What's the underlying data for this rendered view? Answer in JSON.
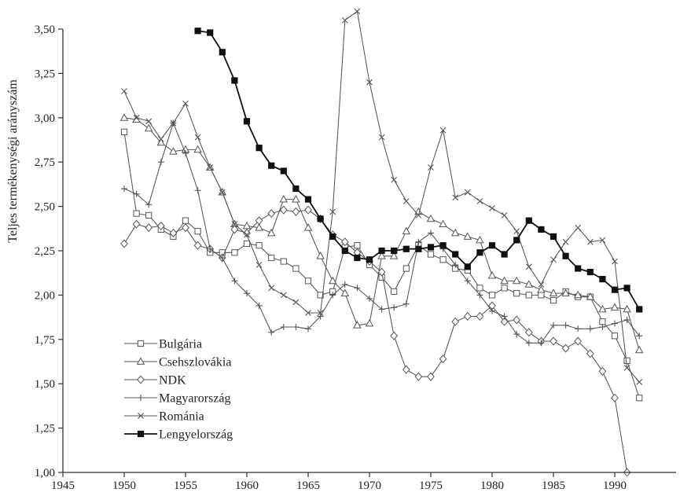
{
  "chart_data": {
    "type": "line",
    "title": "",
    "xlabel": "",
    "ylabel": "Teljes termékenységi arányszám",
    "xlim": [
      1945,
      1995
    ],
    "ylim": [
      1.0,
      3.5
    ],
    "xticks": [
      1945,
      1950,
      1955,
      1960,
      1965,
      1970,
      1975,
      1980,
      1985,
      1990
    ],
    "xtick_labels": [
      "1945",
      "1950",
      "1955",
      "1960",
      "1965",
      "1970",
      "1975",
      "1980",
      "1985",
      "1990"
    ],
    "yticks": [
      1.0,
      1.25,
      1.5,
      1.75,
      2.0,
      2.25,
      2.5,
      2.75,
      3.0,
      3.25,
      3.5
    ],
    "ytick_labels": [
      "1,00",
      "1,25",
      "1,50",
      "1,75",
      "2,00",
      "2,25",
      "2,50",
      "2,75",
      "3,00",
      "3,25",
      "3,50"
    ],
    "grid": false,
    "legend_position": "bottom-left",
    "series": [
      {
        "name": "Bulgária",
        "marker": "square-open",
        "color": "#555555",
        "points": [
          [
            1950,
            2.92
          ],
          [
            1951,
            2.46
          ],
          [
            1952,
            2.45
          ],
          [
            1953,
            2.37
          ],
          [
            1954,
            2.33
          ],
          [
            1955,
            2.42
          ],
          [
            1956,
            2.36
          ],
          [
            1957,
            2.24
          ],
          [
            1958,
            2.24
          ],
          [
            1959,
            2.24
          ],
          [
            1960,
            2.29
          ],
          [
            1961,
            2.28
          ],
          [
            1962,
            2.21
          ],
          [
            1963,
            2.19
          ],
          [
            1964,
            2.15
          ],
          [
            1965,
            2.08
          ],
          [
            1966,
            2.0
          ],
          [
            1967,
            2.02
          ],
          [
            1968,
            2.27
          ],
          [
            1969,
            2.28
          ],
          [
            1970,
            2.17
          ],
          [
            1971,
            2.1
          ],
          [
            1972,
            2.02
          ],
          [
            1973,
            2.15
          ],
          [
            1974,
            2.28
          ],
          [
            1975,
            2.23
          ],
          [
            1976,
            2.2
          ],
          [
            1977,
            2.15
          ],
          [
            1978,
            2.14
          ],
          [
            1979,
            2.04
          ],
          [
            1980,
            2.0
          ],
          [
            1981,
            2.04
          ],
          [
            1982,
            2.01
          ],
          [
            1983,
            2.0
          ],
          [
            1984,
            2.0
          ],
          [
            1985,
            1.97
          ],
          [
            1986,
            2.02
          ],
          [
            1987,
            1.99
          ],
          [
            1988,
            1.99
          ],
          [
            1989,
            1.85
          ],
          [
            1990,
            1.77
          ],
          [
            1991,
            1.63
          ],
          [
            1992,
            1.42
          ]
        ]
      },
      {
        "name": "Csehszlovákia",
        "marker": "triangle-open",
        "color": "#555555",
        "points": [
          [
            1950,
            3.0
          ],
          [
            1951,
            2.99
          ],
          [
            1952,
            2.94
          ],
          [
            1953,
            2.86
          ],
          [
            1954,
            2.81
          ],
          [
            1955,
            2.82
          ],
          [
            1956,
            2.82
          ],
          [
            1957,
            2.72
          ],
          [
            1958,
            2.58
          ],
          [
            1959,
            2.4
          ],
          [
            1960,
            2.39
          ],
          [
            1961,
            2.38
          ],
          [
            1962,
            2.35
          ],
          [
            1963,
            2.54
          ],
          [
            1964,
            2.54
          ],
          [
            1965,
            2.38
          ],
          [
            1966,
            2.22
          ],
          [
            1967,
            2.08
          ],
          [
            1968,
            2.01
          ],
          [
            1969,
            1.83
          ],
          [
            1970,
            1.84
          ],
          [
            1971,
            2.22
          ],
          [
            1972,
            2.22
          ],
          [
            1973,
            2.36
          ],
          [
            1974,
            2.47
          ],
          [
            1975,
            2.43
          ],
          [
            1976,
            2.4
          ],
          [
            1977,
            2.35
          ],
          [
            1978,
            2.33
          ],
          [
            1979,
            2.31
          ],
          [
            1980,
            2.11
          ],
          [
            1981,
            2.08
          ],
          [
            1982,
            2.08
          ],
          [
            1983,
            2.06
          ],
          [
            1984,
            2.03
          ],
          [
            1985,
            2.01
          ],
          [
            1986,
            2.01
          ],
          [
            1987,
            2.0
          ],
          [
            1988,
            1.99
          ],
          [
            1989,
            1.92
          ],
          [
            1990,
            1.93
          ],
          [
            1991,
            1.92
          ],
          [
            1992,
            1.69
          ]
        ]
      },
      {
        "name": "NDK",
        "marker": "diamond-open",
        "color": "#555555",
        "points": [
          [
            1950,
            2.29
          ],
          [
            1951,
            2.4
          ],
          [
            1952,
            2.38
          ],
          [
            1953,
            2.39
          ],
          [
            1954,
            2.35
          ],
          [
            1955,
            2.38
          ],
          [
            1956,
            2.28
          ],
          [
            1957,
            2.26
          ],
          [
            1958,
            2.21
          ],
          [
            1959,
            2.37
          ],
          [
            1960,
            2.35
          ],
          [
            1961,
            2.42
          ],
          [
            1962,
            2.46
          ],
          [
            1963,
            2.48
          ],
          [
            1964,
            2.47
          ],
          [
            1965,
            2.48
          ],
          [
            1966,
            2.43
          ],
          [
            1967,
            2.34
          ],
          [
            1968,
            2.3
          ],
          [
            1969,
            2.24
          ],
          [
            1970,
            2.19
          ],
          [
            1971,
            2.13
          ],
          [
            1972,
            1.77
          ],
          [
            1973,
            1.58
          ],
          [
            1974,
            1.54
          ],
          [
            1975,
            1.54
          ],
          [
            1976,
            1.64
          ],
          [
            1977,
            1.85
          ],
          [
            1978,
            1.88
          ],
          [
            1979,
            1.88
          ],
          [
            1980,
            1.94
          ],
          [
            1981,
            1.85
          ],
          [
            1982,
            1.86
          ],
          [
            1983,
            1.79
          ],
          [
            1984,
            1.74
          ],
          [
            1985,
            1.74
          ],
          [
            1986,
            1.7
          ],
          [
            1987,
            1.74
          ],
          [
            1988,
            1.67
          ],
          [
            1989,
            1.57
          ],
          [
            1990,
            1.42
          ],
          [
            1991,
            1.0
          ]
        ]
      },
      {
        "name": "Magyarország",
        "marker": "plus",
        "color": "#555555",
        "points": [
          [
            1950,
            2.6
          ],
          [
            1951,
            2.57
          ],
          [
            1952,
            2.51
          ],
          [
            1953,
            2.75
          ],
          [
            1954,
            2.97
          ],
          [
            1955,
            2.8
          ],
          [
            1956,
            2.59
          ],
          [
            1957,
            2.26
          ],
          [
            1958,
            2.21
          ],
          [
            1959,
            2.08
          ],
          [
            1960,
            2.01
          ],
          [
            1961,
            1.94
          ],
          [
            1962,
            1.79
          ],
          [
            1963,
            1.82
          ],
          [
            1964,
            1.82
          ],
          [
            1965,
            1.81
          ],
          [
            1966,
            1.88
          ],
          [
            1967,
            2.0
          ],
          [
            1968,
            2.06
          ],
          [
            1969,
            2.04
          ],
          [
            1970,
            1.98
          ],
          [
            1971,
            1.92
          ],
          [
            1972,
            1.93
          ],
          [
            1973,
            1.95
          ],
          [
            1974,
            2.3
          ],
          [
            1975,
            2.35
          ],
          [
            1976,
            2.26
          ],
          [
            1977,
            2.17
          ],
          [
            1978,
            2.08
          ],
          [
            1979,
            2.0
          ],
          [
            1980,
            1.91
          ],
          [
            1981,
            1.88
          ],
          [
            1982,
            1.78
          ],
          [
            1983,
            1.73
          ],
          [
            1984,
            1.73
          ],
          [
            1985,
            1.83
          ],
          [
            1986,
            1.83
          ],
          [
            1987,
            1.81
          ],
          [
            1988,
            1.81
          ],
          [
            1989,
            1.82
          ],
          [
            1990,
            1.84
          ],
          [
            1991,
            1.86
          ],
          [
            1992,
            1.77
          ]
        ]
      },
      {
        "name": "Románia",
        "marker": "x",
        "color": "#555555",
        "points": [
          [
            1950,
            3.15
          ],
          [
            1951,
            3.0
          ],
          [
            1952,
            2.98
          ],
          [
            1953,
            2.88
          ],
          [
            1954,
            2.97
          ],
          [
            1955,
            3.08
          ],
          [
            1956,
            2.89
          ],
          [
            1957,
            2.72
          ],
          [
            1958,
            2.58
          ],
          [
            1959,
            2.4
          ],
          [
            1960,
            2.34
          ],
          [
            1961,
            2.17
          ],
          [
            1962,
            2.04
          ],
          [
            1963,
            2.0
          ],
          [
            1964,
            1.96
          ],
          [
            1965,
            1.9
          ],
          [
            1966,
            1.9
          ],
          [
            1967,
            2.47
          ],
          [
            1968,
            3.55
          ],
          [
            1969,
            3.6
          ],
          [
            1970,
            3.2
          ],
          [
            1971,
            2.89
          ],
          [
            1972,
            2.65
          ],
          [
            1973,
            2.53
          ],
          [
            1974,
            2.45
          ],
          [
            1975,
            2.72
          ],
          [
            1976,
            2.93
          ],
          [
            1977,
            2.55
          ],
          [
            1978,
            2.58
          ],
          [
            1979,
            2.53
          ],
          [
            1980,
            2.49
          ],
          [
            1981,
            2.45
          ],
          [
            1982,
            2.36
          ],
          [
            1983,
            2.16
          ],
          [
            1984,
            2.06
          ],
          [
            1985,
            2.2
          ],
          [
            1986,
            2.3
          ],
          [
            1987,
            2.38
          ],
          [
            1988,
            2.3
          ],
          [
            1989,
            2.31
          ],
          [
            1990,
            2.19
          ],
          [
            1991,
            1.59
          ],
          [
            1992,
            1.51
          ]
        ]
      },
      {
        "name": "Lengyelország",
        "marker": "square-filled",
        "color": "#111111",
        "points": [
          [
            1956,
            3.49
          ],
          [
            1957,
            3.48
          ],
          [
            1958,
            3.37
          ],
          [
            1959,
            3.21
          ],
          [
            1960,
            2.98
          ],
          [
            1961,
            2.83
          ],
          [
            1962,
            2.73
          ],
          [
            1963,
            2.7
          ],
          [
            1964,
            2.6
          ],
          [
            1965,
            2.54
          ],
          [
            1966,
            2.43
          ],
          [
            1967,
            2.33
          ],
          [
            1968,
            2.25
          ],
          [
            1969,
            2.21
          ],
          [
            1970,
            2.2
          ],
          [
            1971,
            2.25
          ],
          [
            1972,
            2.25
          ],
          [
            1973,
            2.26
          ],
          [
            1974,
            2.26
          ],
          [
            1975,
            2.27
          ],
          [
            1976,
            2.28
          ],
          [
            1977,
            2.23
          ],
          [
            1978,
            2.16
          ],
          [
            1979,
            2.24
          ],
          [
            1980,
            2.28
          ],
          [
            1981,
            2.23
          ],
          [
            1982,
            2.31
          ],
          [
            1983,
            2.42
          ],
          [
            1984,
            2.37
          ],
          [
            1985,
            2.33
          ],
          [
            1986,
            2.22
          ],
          [
            1987,
            2.15
          ],
          [
            1988,
            2.13
          ],
          [
            1989,
            2.09
          ],
          [
            1990,
            2.03
          ],
          [
            1991,
            2.04
          ],
          [
            1992,
            1.92
          ]
        ]
      }
    ]
  }
}
